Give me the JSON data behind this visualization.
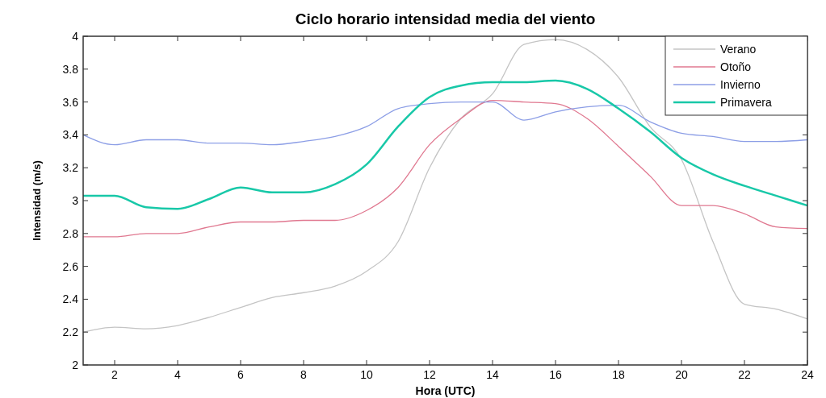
{
  "chart_data": {
    "type": "line",
    "title": "Ciclo horario intensidad media del viento",
    "xlabel": "Hora (UTC)",
    "ylabel": "Intensidad (m/s)",
    "x": [
      1,
      2,
      3,
      4,
      5,
      6,
      7,
      8,
      9,
      10,
      11,
      12,
      13,
      14,
      15,
      16,
      17,
      18,
      19,
      20,
      21,
      22,
      23,
      24
    ],
    "series": [
      {
        "name": "Verano",
        "color": "#c4c4c4",
        "values": [
          2.2,
          2.23,
          2.22,
          2.24,
          2.29,
          2.35,
          2.41,
          2.44,
          2.48,
          2.57,
          2.75,
          3.2,
          3.5,
          3.65,
          3.95,
          3.98,
          3.92,
          3.75,
          3.45,
          3.25,
          2.75,
          2.37,
          2.34,
          2.28
        ]
      },
      {
        "name": "Otoño",
        "color": "#e07890",
        "values": [
          2.78,
          2.78,
          2.8,
          2.8,
          2.84,
          2.87,
          2.87,
          2.88,
          2.88,
          2.94,
          3.08,
          3.34,
          3.5,
          3.61,
          3.6,
          3.59,
          3.5,
          3.33,
          3.15,
          2.97,
          2.97,
          2.92,
          2.84,
          2.83
        ]
      },
      {
        "name": "Invierno",
        "color": "#8c9ee6",
        "values": [
          3.4,
          3.34,
          3.37,
          3.37,
          3.35,
          3.35,
          3.34,
          3.36,
          3.39,
          3.45,
          3.56,
          3.59,
          3.6,
          3.6,
          3.49,
          3.54,
          3.57,
          3.58,
          3.48,
          3.41,
          3.39,
          3.36,
          3.36,
          3.37
        ]
      },
      {
        "name": "Primavera",
        "color": "#18c8a8",
        "values": [
          3.03,
          3.03,
          2.96,
          2.95,
          3.01,
          3.08,
          3.05,
          3.05,
          3.1,
          3.22,
          3.45,
          3.63,
          3.7,
          3.72,
          3.72,
          3.73,
          3.68,
          3.56,
          3.42,
          3.26,
          3.16,
          3.09,
          3.03,
          2.97
        ]
      }
    ],
    "xlim": [
      1,
      24
    ],
    "xticks": [
      2,
      4,
      6,
      8,
      10,
      12,
      14,
      16,
      18,
      20,
      22,
      24
    ],
    "ylim": [
      2,
      4
    ],
    "yticks": [
      2,
      2.2,
      2.4,
      2.6,
      2.8,
      3,
      3.2,
      3.4,
      3.6,
      3.8,
      4
    ],
    "grid": false,
    "legend": "top right",
    "marker": "none",
    "line_style": "solid"
  }
}
